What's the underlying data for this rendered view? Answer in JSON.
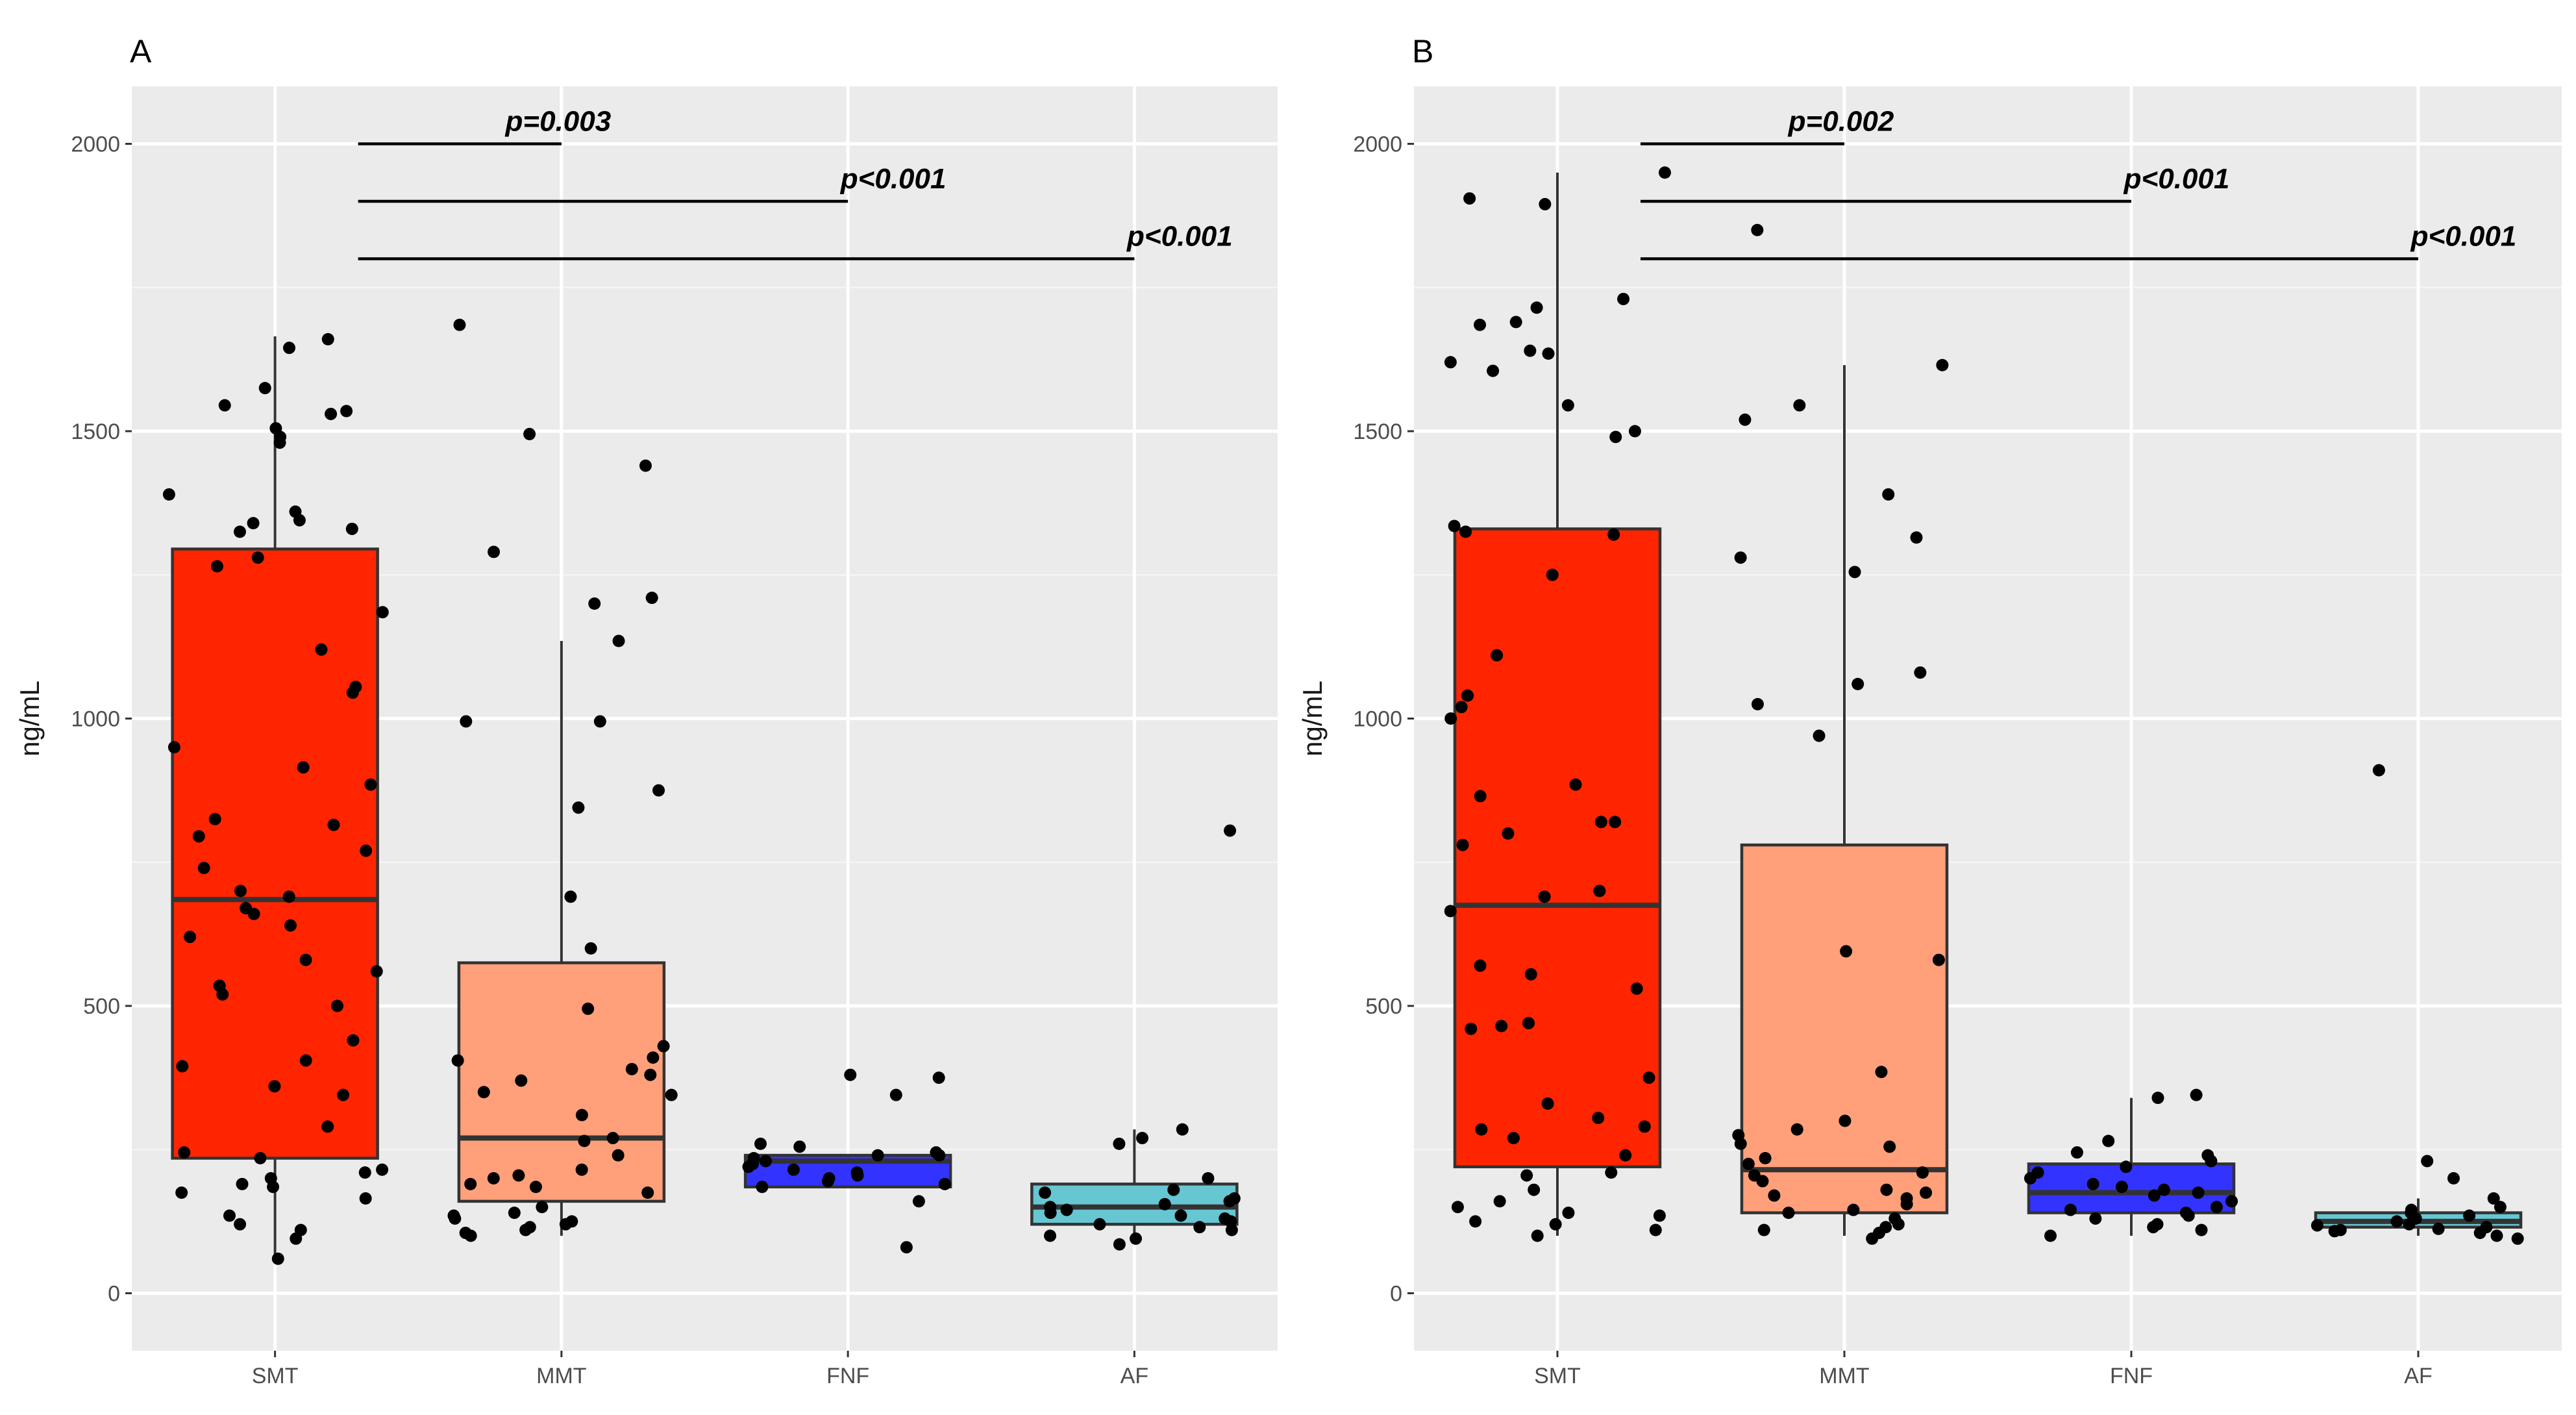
{
  "chart_data": [
    {
      "type": "box",
      "panel_label": "A",
      "ylabel": "ng/mL",
      "xlabel": "",
      "ylim": [
        -100,
        2100
      ],
      "yticks": [
        0,
        500,
        1000,
        1500,
        2000
      ],
      "grid": true,
      "categories": [
        "SMT",
        "MMT",
        "FNF",
        "AF"
      ],
      "colors": [
        "#ff2500",
        "#ffa07a",
        "#3333ff",
        "#66c6d2"
      ],
      "boxes": [
        {
          "group": "SMT",
          "whisker_low": 60,
          "q1": 235,
          "median": 685,
          "q3": 1295,
          "whisker_high": 1665
        },
        {
          "group": "MMT",
          "whisker_low": 100,
          "q1": 160,
          "median": 270,
          "q3": 575,
          "whisker_high": 1135
        },
        {
          "group": "FNF",
          "whisker_low": 185,
          "q1": 185,
          "median": 230,
          "q3": 240,
          "whisker_high": 240
        },
        {
          "group": "AF",
          "whisker_low": 90,
          "q1": 120,
          "median": 150,
          "q3": 190,
          "whisker_high": 285
        }
      ],
      "points": [
        [
          1660,
          1645,
          1575,
          1545,
          1535,
          1530,
          1505,
          1490,
          1480,
          1390,
          1360,
          1345,
          1340,
          1330,
          1325,
          1280,
          1265,
          1185,
          1120,
          1055,
          1045,
          950,
          915,
          885,
          825,
          815,
          795,
          770,
          740,
          700,
          690,
          670,
          660,
          640,
          620,
          580,
          560,
          535,
          520,
          500,
          440,
          405,
          395,
          360,
          345,
          290,
          245,
          235,
          215,
          210,
          200,
          190,
          185,
          175,
          165,
          135,
          120,
          110,
          95,
          60
        ],
        [
          1685,
          1495,
          1440,
          1290,
          1210,
          1200,
          1135,
          995,
          995,
          875,
          845,
          690,
          600,
          495,
          430,
          410,
          405,
          390,
          380,
          370,
          350,
          345,
          310,
          270,
          265,
          240,
          215,
          205,
          200,
          190,
          185,
          175,
          150,
          140,
          135,
          130,
          125,
          120,
          115,
          110,
          105,
          100
        ],
        [
          380,
          375,
          345,
          260,
          255,
          245,
          240,
          240,
          235,
          230,
          225,
          220,
          215,
          210,
          205,
          200,
          195,
          190,
          185,
          160,
          80
        ],
        [
          805,
          285,
          270,
          260,
          200,
          180,
          175,
          165,
          160,
          155,
          150,
          145,
          140,
          135,
          130,
          125,
          120,
          115,
          110,
          100,
          95,
          85
        ]
      ],
      "significance": [
        {
          "from": "SMT",
          "to": "MMT",
          "y": 2000,
          "label": "p=0.003"
        },
        {
          "from": "SMT",
          "to": "FNF",
          "y": 1900,
          "label": "p<0.001"
        },
        {
          "from": "SMT",
          "to": "AF",
          "y": 1800,
          "label": "p<0.001"
        }
      ]
    },
    {
      "type": "box",
      "panel_label": "B",
      "ylabel": "ng/mL",
      "xlabel": "",
      "ylim": [
        -100,
        2100
      ],
      "yticks": [
        0,
        500,
        1000,
        1500,
        2000
      ],
      "grid": true,
      "categories": [
        "SMT",
        "MMT",
        "FNF",
        "AF"
      ],
      "colors": [
        "#ff2500",
        "#ffa07a",
        "#3333ff",
        "#66c6d2"
      ],
      "boxes": [
        {
          "group": "SMT",
          "whisker_low": 100,
          "q1": 220,
          "median": 675,
          "q3": 1330,
          "whisker_high": 1950
        },
        {
          "group": "MMT",
          "whisker_low": 100,
          "q1": 140,
          "median": 215,
          "q3": 780,
          "whisker_high": 1615
        },
        {
          "group": "FNF",
          "whisker_low": 100,
          "q1": 140,
          "median": 175,
          "q3": 225,
          "whisker_high": 340
        },
        {
          "group": "AF",
          "whisker_low": 100,
          "q1": 115,
          "median": 125,
          "q3": 140,
          "whisker_high": 165
        }
      ],
      "points": [
        [
          1950,
          1905,
          1895,
          1730,
          1715,
          1690,
          1685,
          1640,
          1635,
          1620,
          1605,
          1545,
          1500,
          1490,
          1335,
          1325,
          1320,
          1250,
          1110,
          1040,
          1020,
          1000,
          885,
          865,
          820,
          820,
          800,
          780,
          700,
          690,
          665,
          570,
          555,
          530,
          470,
          465,
          460,
          375,
          330,
          305,
          290,
          285,
          270,
          240,
          210,
          205,
          180,
          160,
          150,
          140,
          135,
          125,
          120,
          110,
          100
        ],
        [
          1850,
          1615,
          1545,
          1520,
          1390,
          1315,
          1280,
          1255,
          1080,
          1060,
          1025,
          970,
          595,
          580,
          385,
          300,
          285,
          275,
          260,
          255,
          235,
          225,
          210,
          205,
          195,
          180,
          175,
          170,
          165,
          155,
          145,
          140,
          130,
          120,
          115,
          110,
          105,
          95
        ],
        [
          345,
          340,
          265,
          245,
          240,
          230,
          220,
          210,
          200,
          190,
          185,
          180,
          175,
          170,
          160,
          150,
          145,
          140,
          135,
          130,
          120,
          115,
          110,
          100
        ],
        [
          910,
          230,
          200,
          165,
          150,
          145,
          140,
          135,
          130,
          125,
          120,
          118,
          115,
          112,
          110,
          108,
          105,
          100,
          95
        ]
      ],
      "significance": [
        {
          "from": "SMT",
          "to": "MMT",
          "y": 2000,
          "label": "p=0.002"
        },
        {
          "from": "SMT",
          "to": "FNF",
          "y": 1900,
          "label": "p<0.001"
        },
        {
          "from": "SMT",
          "to": "AF",
          "y": 1800,
          "label": "p<0.001"
        }
      ]
    }
  ]
}
